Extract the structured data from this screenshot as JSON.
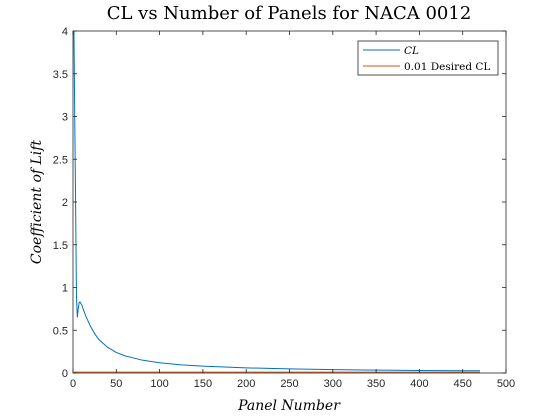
{
  "chart_data": {
    "type": "line",
    "title": "CL vs Number of Panels for NACA 0012",
    "xlabel": "Panel Number",
    "ylabel": "Coefficient of Lift",
    "xlim": [
      0,
      500
    ],
    "ylim": [
      0,
      4
    ],
    "xticks": [
      0,
      50,
      100,
      150,
      200,
      250,
      300,
      350,
      400,
      450,
      500
    ],
    "yticks": [
      0,
      0.5,
      1,
      1.5,
      2,
      2.5,
      3,
      3.5,
      4
    ],
    "ytick_labels": [
      "0",
      "0.5",
      "1",
      "1.5",
      "2",
      "2.5",
      "3",
      "3.5",
      "4"
    ],
    "grid": false,
    "legend_position": "top-right",
    "series": [
      {
        "name": "CL",
        "color": "#0072BD",
        "x": [
          1,
          2,
          3,
          4,
          5,
          6,
          7,
          8,
          10,
          12,
          15,
          20,
          25,
          30,
          40,
          50,
          60,
          80,
          100,
          125,
          150,
          200,
          250,
          300,
          350,
          400,
          450,
          470
        ],
        "y": [
          4.1,
          3.0,
          2.0,
          0.9,
          0.65,
          0.75,
          0.82,
          0.83,
          0.8,
          0.74,
          0.66,
          0.55,
          0.46,
          0.39,
          0.3,
          0.24,
          0.2,
          0.15,
          0.12,
          0.095,
          0.08,
          0.06,
          0.048,
          0.04,
          0.034,
          0.03,
          0.027,
          0.026
        ]
      },
      {
        "name": "0.01 Desired CL",
        "color": "#D95319",
        "x": [
          1,
          470
        ],
        "y": [
          0.01,
          0.01
        ]
      }
    ]
  }
}
